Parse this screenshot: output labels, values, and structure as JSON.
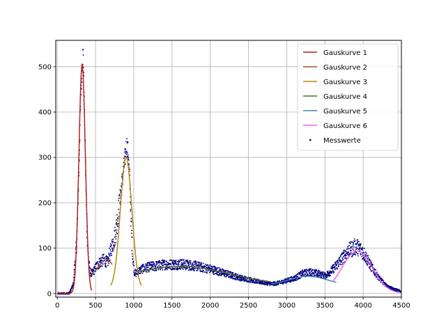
{
  "chart_data": {
    "type": "scatter",
    "title": "",
    "xlabel": "",
    "ylabel": "",
    "xlim": [
      -20,
      4500
    ],
    "ylim": [
      -8,
      558
    ],
    "grid": true,
    "legend_position": "top-right",
    "x_ticks": [
      0,
      500,
      1000,
      1500,
      2000,
      2500,
      3000,
      3500,
      4000,
      4500
    ],
    "y_ticks": [
      0,
      100,
      200,
      300,
      400,
      500
    ],
    "x_tick_labels": [
      "0",
      "500",
      "1000",
      "1500",
      "2000",
      "2500",
      "3000",
      "3500",
      "4000",
      "4500"
    ],
    "y_tick_labels": [
      "0",
      "100",
      "200",
      "300",
      "400",
      "500"
    ],
    "measured": {
      "name": "Messwerte",
      "color": "#00007f",
      "x": [
        0,
        100,
        150,
        200,
        250,
        280,
        300,
        320,
        330,
        340,
        360,
        380,
        400,
        420,
        440,
        460,
        500,
        550,
        600,
        650,
        700,
        750,
        800,
        850,
        880,
        900,
        920,
        940,
        960,
        980,
        1000,
        1020,
        1050,
        1100,
        1200,
        1300,
        1400,
        1500,
        1600,
        1700,
        1800,
        1900,
        2000,
        2100,
        2200,
        2300,
        2400,
        2500,
        2600,
        2700,
        2800,
        2900,
        3000,
        3100,
        3200,
        3300,
        3400,
        3500,
        3600,
        3700,
        3800,
        3900,
        3950,
        4000,
        4100,
        4200,
        4300,
        4400,
        4500
      ],
      "y": [
        0,
        0,
        2,
        20,
        120,
        300,
        440,
        510,
        530,
        470,
        300,
        150,
        80,
        50,
        45,
        48,
        60,
        70,
        75,
        70,
        100,
        130,
        190,
        260,
        300,
        330,
        310,
        250,
        150,
        80,
        50,
        45,
        50,
        55,
        60,
        62,
        65,
        65,
        66,
        64,
        62,
        58,
        55,
        50,
        45,
        40,
        35,
        32,
        28,
        25,
        22,
        25,
        30,
        35,
        45,
        48,
        45,
        40,
        55,
        75,
        95,
        105,
        100,
        90,
        60,
        35,
        18,
        10,
        6
      ]
    },
    "series": [
      {
        "name": "Gauskurve 1",
        "color": "#b22222",
        "amp": 505,
        "mu": 325,
        "sigma": 42,
        "offset": 0,
        "x_range": [
          0,
          450
        ]
      },
      {
        "name": "Gauskurve 2",
        "color": "#a0522d",
        "amp": 35,
        "mu": 640,
        "sigma": 90,
        "offset": 40,
        "x_range": [
          450,
          720
        ]
      },
      {
        "name": "Gauskurve 3",
        "color": "#b8860b",
        "amp": 290,
        "mu": 900,
        "sigma": 75,
        "offset": 10,
        "x_range": [
          700,
          1100
        ]
      },
      {
        "name": "Gauskurve 4",
        "color": "#556b2f",
        "amp": 42,
        "mu": 1600,
        "sigma": 650,
        "offset": 18,
        "x_range": [
          1050,
          2800
        ]
      },
      {
        "name": "Gauskurve 5",
        "color": "#4682b4",
        "amp": 20,
        "mu": 3280,
        "sigma": 250,
        "offset": 18,
        "x_range": [
          2800,
          3650
        ]
      },
      {
        "name": "Gauskurve 6",
        "color": "#ee66ee",
        "amp": 93,
        "mu": 3920,
        "sigma": 200,
        "offset": 0,
        "x_range": [
          3600,
          4470
        ]
      }
    ]
  }
}
